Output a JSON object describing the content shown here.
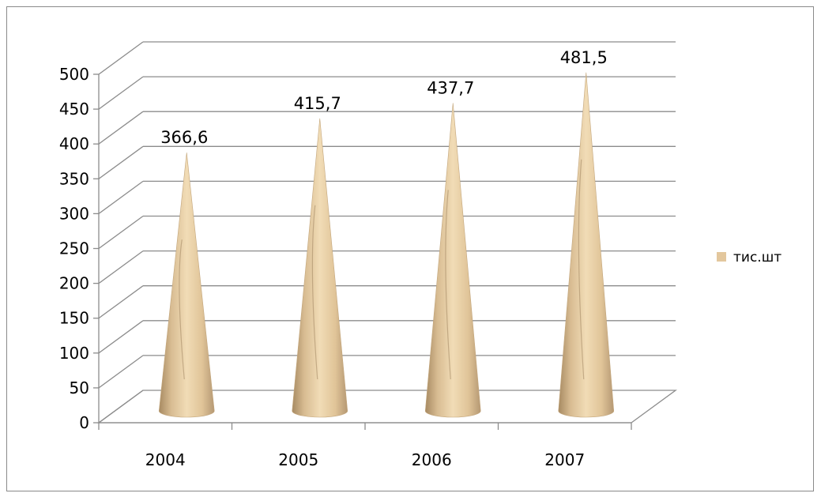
{
  "chart_data": {
    "type": "bar",
    "bar_shape": "cone",
    "view": "3d",
    "categories": [
      "2004",
      "2005",
      "2006",
      "2007"
    ],
    "series": [
      {
        "name": "тис.шт",
        "values": [
          366.6,
          415.7,
          437.7,
          481.5
        ]
      }
    ],
    "value_labels": [
      "366,6",
      "415,7",
      "437,7",
      "481,5"
    ],
    "y_ticks": [
      "0",
      "50",
      "100",
      "150",
      "200",
      "250",
      "300",
      "350",
      "400",
      "450",
      "500"
    ],
    "ylim": [
      0,
      500
    ],
    "grid": true,
    "legend": "right",
    "series_color": "#e3c79d",
    "title": "",
    "xlabel": "",
    "ylabel": ""
  }
}
